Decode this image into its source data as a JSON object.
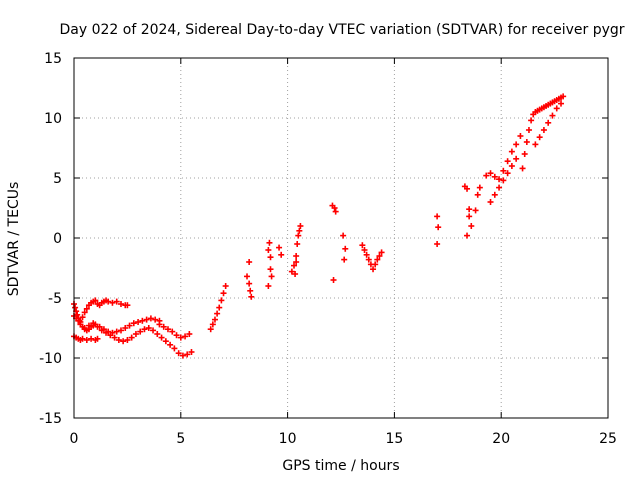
{
  "chart_data": {
    "type": "scatter",
    "title": "Day 022 of 2024, Sidereal Day-to-day VTEC variation (SDTVAR) for receiver pygr",
    "xlabel": "GPS time / hours",
    "ylabel": "SDTVAR / TECUs",
    "xlim": [
      0,
      25
    ],
    "ylim": [
      -15,
      15
    ],
    "xticks": [
      0,
      5,
      10,
      15,
      20,
      25
    ],
    "yticks": [
      -15,
      -10,
      -5,
      0,
      5,
      10,
      15
    ],
    "grid": true,
    "marker": "+",
    "color": "#ff0000",
    "series": [
      {
        "name": "SDTVAR",
        "x": [
          0.0,
          0.05,
          0.1,
          0.15,
          0.2,
          0.25,
          0.3,
          0.4,
          0.5,
          0.6,
          0.7,
          0.8,
          0.9,
          1.0,
          1.1,
          1.2,
          1.3,
          1.4,
          1.5,
          1.6,
          1.8,
          2.0,
          2.2,
          2.4,
          2.5,
          0.0,
          0.1,
          0.2,
          0.3,
          0.4,
          0.5,
          0.6,
          0.7,
          0.8,
          0.9,
          1.0,
          1.2,
          1.4,
          1.6,
          1.8,
          2.0,
          2.2,
          2.4,
          2.6,
          2.8,
          3.0,
          3.2,
          3.4,
          3.6,
          3.8,
          4.0,
          0.0,
          0.1,
          0.2,
          0.3,
          0.4,
          0.6,
          0.8,
          1.0,
          1.1,
          0.5,
          0.7,
          0.9,
          1.1,
          1.3,
          1.5,
          1.7,
          1.9,
          2.1,
          2.3,
          2.5,
          2.7,
          2.9,
          3.1,
          3.3,
          3.5,
          3.7,
          3.9,
          4.1,
          4.3,
          4.5,
          4.7,
          4.9,
          5.1,
          5.3,
          5.5,
          4.0,
          4.2,
          4.4,
          4.6,
          4.8,
          5.0,
          5.2,
          5.4,
          6.4,
          6.5,
          6.6,
          6.7,
          6.8,
          6.9,
          7.0,
          7.1,
          8.1,
          8.2,
          8.25,
          8.3,
          8.2,
          9.1,
          9.15,
          9.2,
          9.25,
          9.1,
          9.2,
          9.6,
          9.7,
          10.2,
          10.3,
          10.4,
          10.45,
          10.5,
          10.55,
          10.6,
          10.35,
          10.4,
          12.1,
          12.2,
          12.25,
          12.15,
          12.6,
          12.7,
          12.65,
          13.5,
          13.6,
          13.7,
          13.8,
          13.9,
          14.0,
          14.1,
          14.2,
          14.3,
          14.4,
          17.0,
          17.05,
          17.0,
          18.3,
          18.4,
          18.5,
          18.6,
          18.4,
          18.5,
          18.8,
          18.9,
          19.0,
          19.3,
          19.5,
          19.7,
          19.9,
          20.1,
          20.3,
          20.5,
          20.7,
          20.9,
          19.5,
          19.7,
          19.9,
          20.1,
          20.3,
          20.5,
          20.7,
          21.0,
          21.1,
          21.2,
          21.3,
          21.4,
          21.5,
          21.6,
          21.7,
          21.8,
          21.9,
          22.0,
          22.1,
          22.2,
          22.3,
          22.4,
          22.5,
          22.6,
          22.7,
          22.8,
          22.9,
          21.6,
          21.8,
          22.0,
          22.2,
          22.4,
          22.6,
          22.8
        ],
        "y": [
          -5.5,
          -5.8,
          -6.1,
          -6.4,
          -6.7,
          -6.9,
          -7.0,
          -6.6,
          -6.2,
          -5.9,
          -5.6,
          -5.4,
          -5.3,
          -5.2,
          -5.5,
          -5.6,
          -5.4,
          -5.3,
          -5.2,
          -5.3,
          -5.4,
          -5.3,
          -5.5,
          -5.6,
          -5.6,
          -6.5,
          -6.7,
          -6.9,
          -7.2,
          -7.4,
          -7.6,
          -7.7,
          -7.6,
          -7.4,
          -7.3,
          -7.2,
          -7.4,
          -7.6,
          -7.8,
          -7.9,
          -7.8,
          -7.7,
          -7.5,
          -7.3,
          -7.1,
          -7.0,
          -6.9,
          -6.8,
          -6.7,
          -6.8,
          -6.9,
          -8.2,
          -8.3,
          -8.4,
          -8.5,
          -8.4,
          -8.5,
          -8.4,
          -8.5,
          -8.4,
          -7.5,
          -7.3,
          -7.1,
          -7.4,
          -7.7,
          -7.9,
          -8.1,
          -8.3,
          -8.5,
          -8.6,
          -8.5,
          -8.3,
          -8.0,
          -7.8,
          -7.6,
          -7.5,
          -7.7,
          -8.0,
          -8.3,
          -8.6,
          -8.9,
          -9.2,
          -9.6,
          -9.8,
          -9.7,
          -9.5,
          -7.2,
          -7.4,
          -7.6,
          -7.8,
          -8.1,
          -8.3,
          -8.2,
          -8.0,
          -7.6,
          -7.2,
          -6.8,
          -6.3,
          -5.8,
          -5.2,
          -4.6,
          -4.0,
          -3.2,
          -3.8,
          -4.4,
          -4.9,
          -2.0,
          -1.0,
          -0.4,
          -2.6,
          -3.2,
          -4.0,
          -1.6,
          -0.8,
          -1.4,
          -2.8,
          -2.3,
          -1.5,
          -0.5,
          0.2,
          0.6,
          1.0,
          -3.0,
          -2.0,
          2.7,
          2.5,
          2.2,
          -3.5,
          0.2,
          -0.9,
          -1.8,
          -0.6,
          -1.0,
          -1.4,
          -1.8,
          -2.2,
          -2.6,
          -2.2,
          -1.8,
          -1.5,
          -1.2,
          1.8,
          0.9,
          -0.5,
          4.3,
          4.1,
          1.8,
          1.0,
          0.2,
          2.4,
          2.3,
          3.6,
          4.2,
          5.2,
          5.4,
          5.1,
          4.9,
          5.6,
          6.4,
          7.2,
          7.8,
          8.5,
          3.0,
          3.6,
          4.2,
          4.8,
          5.4,
          6.0,
          6.6,
          5.8,
          7.0,
          8.0,
          9.0,
          9.8,
          10.3,
          10.5,
          10.6,
          10.7,
          10.8,
          10.9,
          11.0,
          11.1,
          11.2,
          11.3,
          11.4,
          11.5,
          11.6,
          11.7,
          11.8,
          7.8,
          8.4,
          9.0,
          9.6,
          10.2,
          10.8,
          11.2
        ]
      }
    ]
  }
}
